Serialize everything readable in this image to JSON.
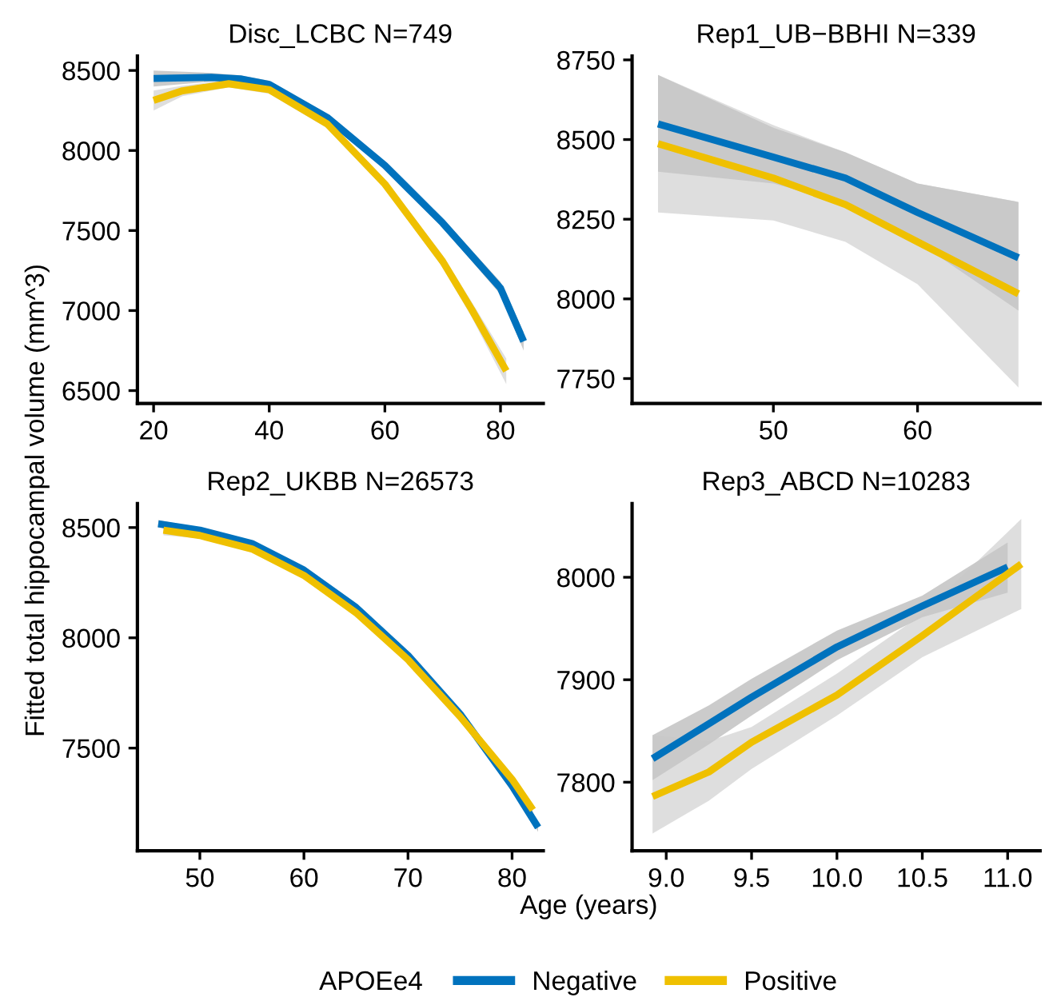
{
  "chart_data": [
    {
      "type": "line",
      "title": "Disc_LCBC N=749",
      "ylabel": "Fitted total hippocampal volume (mm^3)",
      "legend": "bottom",
      "legend_title": "APOEe4",
      "xlim": [
        17.2,
        87.4
      ],
      "ylim": [
        6420,
        8590
      ],
      "xticks": [
        20,
        40,
        60,
        80
      ],
      "yticks": [
        6500,
        7000,
        7500,
        8000,
        8500
      ],
      "grid": false,
      "series": [
        {
          "name": "Negative",
          "color": "#0072bd",
          "x": [
            20,
            30,
            35,
            40,
            50,
            60,
            70,
            80,
            84
          ],
          "values": [
            8450,
            8457,
            8447,
            8413,
            8207,
            7907,
            7547,
            7140,
            6807
          ],
          "lower": [
            8400,
            8430,
            8425,
            8390,
            8185,
            7885,
            7520,
            7100,
            6750
          ],
          "upper": [
            8500,
            8485,
            8470,
            8436,
            8230,
            7930,
            7575,
            7180,
            6865
          ]
        },
        {
          "name": "Positive",
          "color": "#efc000",
          "x": [
            20,
            25,
            33,
            40,
            50,
            60,
            70,
            75,
            81
          ],
          "values": [
            8313,
            8373,
            8417,
            8380,
            8167,
            7790,
            7307,
            7007,
            6623
          ],
          "lower": [
            8250,
            8340,
            8395,
            8355,
            8140,
            7760,
            7270,
            6960,
            6540
          ],
          "upper": [
            8375,
            8405,
            8440,
            8405,
            8195,
            7820,
            7345,
            7055,
            6700
          ]
        }
      ]
    },
    {
      "type": "line",
      "title": "Rep1_UB−BBHI N=339",
      "xlim": [
        40.2,
        68.5
      ],
      "ylim": [
        7672,
        8762
      ],
      "xticks": [
        50,
        60
      ],
      "yticks": [
        7750,
        8000,
        8250,
        8500,
        8750
      ],
      "grid": false,
      "series": [
        {
          "color": "#0072bd",
          "x": [
            42,
            50,
            55,
            60,
            67
          ],
          "values": [
            8549,
            8445,
            8379,
            8271,
            8129
          ],
          "lower": [
            8399,
            8362,
            8300,
            8179,
            7963
          ],
          "upper": [
            8703,
            8537,
            8460,
            8362,
            8304
          ]
        },
        {
          "color": "#efc000",
          "x": [
            42,
            50,
            55,
            60,
            67
          ],
          "values": [
            8487,
            8379,
            8296,
            8179,
            8016
          ],
          "lower": [
            8271,
            8246,
            8179,
            8046,
            7722
          ],
          "upper": [
            8703,
            8545,
            8460,
            8362,
            8304
          ]
        }
      ]
    },
    {
      "type": "line",
      "title": "Rep2_UKBB N=26573",
      "xlabel": "Age (years)",
      "xlim": [
        44,
        83
      ],
      "ylim": [
        7034,
        8609
      ],
      "xticks": [
        50,
        60,
        70,
        80
      ],
      "yticks": [
        7500,
        8000,
        8500
      ],
      "grid": false,
      "series": [
        {
          "color": "#0072bd",
          "x": [
            46,
            50,
            55,
            60,
            65,
            70,
            75,
            80,
            82.5
          ],
          "values": [
            8517,
            8488,
            8428,
            8307,
            8138,
            7920,
            7655,
            7329,
            7140
          ],
          "lower": [
            8500,
            8478,
            8420,
            8300,
            8131,
            7912,
            7645,
            7315,
            7120
          ],
          "upper": [
            8534,
            8498,
            8436,
            8314,
            8145,
            7928,
            7665,
            7343,
            7160
          ]
        },
        {
          "color": "#efc000",
          "x": [
            46.5,
            50,
            55,
            60,
            65,
            70,
            75,
            80,
            82
          ],
          "values": [
            8488,
            8464,
            8403,
            8283,
            8114,
            7901,
            7643,
            7358,
            7220
          ],
          "lower": [
            8465,
            8450,
            8393,
            8274,
            8104,
            7890,
            7630,
            7340,
            7195
          ],
          "upper": [
            8511,
            8478,
            8413,
            8292,
            8124,
            7912,
            7656,
            7376,
            7245
          ]
        }
      ]
    },
    {
      "type": "line",
      "title": "Rep3_ABCD N=10283",
      "xlim": [
        8.8,
        11.19
      ],
      "ylim": [
        7733,
        8072
      ],
      "xticks": [
        {
          "value": 9,
          "label": "9.0"
        },
        9.5,
        {
          "value": 10,
          "label": "10.0"
        },
        10.5,
        {
          "value": 11,
          "label": "11.0"
        }
      ],
      "yticks": [
        7800,
        7900,
        8000
      ],
      "grid": false,
      "series": [
        {
          "color": "#0072bd",
          "x": [
            8.92,
            9.25,
            9.5,
            10.0,
            10.5,
            11.0
          ],
          "values": [
            7823,
            7857,
            7883,
            7932,
            7972,
            8010
          ],
          "lower": [
            7802,
            7837,
            7865,
            7919,
            7961,
            7985
          ],
          "upper": [
            7846,
            7875,
            7901,
            7948,
            7982,
            8034
          ]
        },
        {
          "color": "#efc000",
          "x": [
            8.92,
            9.25,
            9.5,
            10.0,
            10.5,
            11.08
          ],
          "values": [
            7786,
            7810,
            7839,
            7885,
            7943,
            8013
          ],
          "lower": [
            7750,
            7782,
            7813,
            7865,
            7922,
            7969
          ],
          "upper": [
            7846,
            7840,
            7854,
            7906,
            7964,
            8057
          ]
        }
      ]
    }
  ]
}
